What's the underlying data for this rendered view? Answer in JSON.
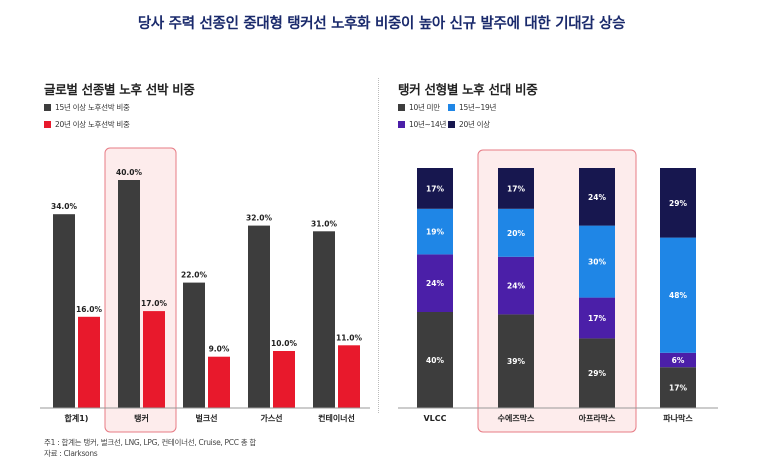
{
  "title": "당사 주력 선종인 중대형 탱커선 노후화 비중이 높아 신규 발주에 대한 기대감 상승",
  "colors": {
    "dark": "#3d3d3d",
    "red": "#e8192c",
    "highlight_fill": "#fdecec",
    "highlight_stroke": "#e77b85",
    "under10": "#3d3d3d",
    "y10_14": "#4b1fa8",
    "y15_19": "#1f86e6",
    "over20": "#17174f"
  },
  "footnotes": {
    "note1": "주1 : 합계는 탱커, 벌크선, LNG, LPG, 컨테이너선, Cruise, PCC 총 합",
    "source": "자료 : Clarksons"
  },
  "chart_data": [
    {
      "type": "bar",
      "title": "글로벌 선종별 노후 선박 비중",
      "categories": [
        "합계1)",
        "탱커",
        "벌크선",
        "가스선",
        "컨테이너선"
      ],
      "series": [
        {
          "name": "15년 이상 노후선박 비중",
          "values": [
            34.0,
            40.0,
            22.0,
            32.0,
            31.0
          ],
          "labels": [
            "34.0%",
            "40.0%",
            "22.0%",
            "32.0%",
            "31.0%"
          ]
        },
        {
          "name": "20년 이상 노후선박 비중",
          "values": [
            16.0,
            17.0,
            9.0,
            10.0,
            11.0
          ],
          "labels": [
            "16.0%",
            "17.0%",
            "9.0%",
            "10.0%",
            "11.0%"
          ]
        }
      ],
      "highlight_category": "탱커",
      "ylim": [
        0,
        40
      ]
    },
    {
      "type": "bar",
      "stacked": true,
      "title": "탱커 선형별 노후 선대 비중",
      "categories": [
        "VLCC",
        "수에즈막스",
        "아프라막스",
        "파나막스"
      ],
      "series": [
        {
          "name": "10년 미만",
          "values": [
            40,
            39,
            29,
            17
          ],
          "labels": [
            "40%",
            "39%",
            "29%",
            "17%"
          ]
        },
        {
          "name": "10년~14년",
          "values": [
            24,
            24,
            17,
            6
          ],
          "labels": [
            "24%",
            "24%",
            "17%",
            "6%"
          ]
        },
        {
          "name": "15년~19년",
          "values": [
            19,
            20,
            30,
            48
          ],
          "labels": [
            "19%",
            "20%",
            "30%",
            "48%"
          ]
        },
        {
          "name": "20년 이상",
          "values": [
            17,
            17,
            24,
            29
          ],
          "labels": [
            "17%",
            "17%",
            "24%",
            "29%"
          ]
        }
      ],
      "highlight_categories": [
        "수에즈막스",
        "아프라막스"
      ],
      "ylim": [
        0,
        100
      ]
    }
  ]
}
